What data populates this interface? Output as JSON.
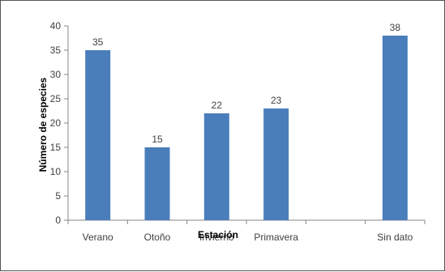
{
  "chart_data": {
    "type": "bar",
    "categories": [
      "Verano",
      "Otoño",
      "Invierno",
      "Primavera",
      "",
      "Sin dato"
    ],
    "values": [
      35,
      15,
      22,
      23,
      null,
      38
    ],
    "data_labels": [
      "35",
      "15",
      "22",
      "23",
      "",
      "38"
    ],
    "title": "",
    "xlabel": "Estación",
    "ylabel": "Número de especies",
    "ylim": [
      0,
      40
    ],
    "yticks": [
      0,
      5,
      10,
      15,
      20,
      25,
      30,
      35,
      40
    ],
    "grid": false,
    "legend": "none",
    "bar_color": "#4a7ebb"
  }
}
